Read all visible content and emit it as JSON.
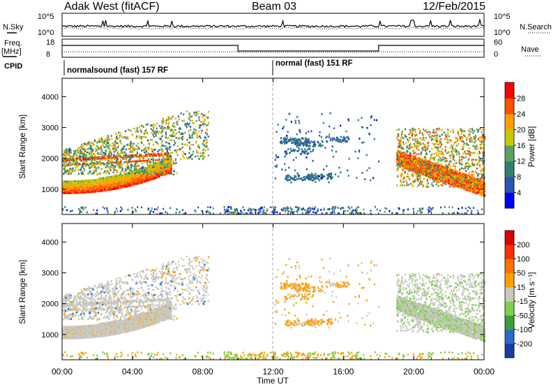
{
  "header": {
    "title": "Adak West (fitACF)",
    "beam": "Beam 03",
    "date": "12/Feb/2015"
  },
  "top_panels": {
    "nsky_label": "N.Sky",
    "nsearch_label": "N.Search",
    "nsky_ticks": [
      "10^5",
      "10^0"
    ],
    "nsearch_ticks": [
      "10^5",
      "10^0"
    ],
    "freq_label_line1": "Freq.",
    "freq_label_line2": "[MHz]",
    "freq_ticks": [
      "18",
      "8"
    ],
    "nave_label": "Nave",
    "nave_ticks": [
      "60",
      "0"
    ],
    "cpid_label": "CPID",
    "cpid_segments": [
      {
        "label": "normalsound (fast) 157 RF",
        "start_h": 0,
        "end_h": 12
      },
      {
        "label": "normal (fast) 151 RF",
        "start_h": 12,
        "end_h": 24
      }
    ]
  },
  "chart_data": [
    {
      "type": "heatmap",
      "name": "Power",
      "ylabel": "Slant Range [km]",
      "ylim": [
        180,
        4600
      ],
      "yticks": [
        "1000",
        "2000",
        "3000",
        "4000"
      ],
      "xlim": [
        "00:00",
        "24:00"
      ],
      "colorbar": {
        "label": "Power [dB]",
        "ticks": [
          "28",
          "24",
          "20",
          "16",
          "12",
          "8",
          "4"
        ],
        "colors": [
          "#0000ff",
          "#2a55b0",
          "#2f7f70",
          "#5aa060",
          "#c8c800",
          "#ffa000",
          "#ff5000",
          "#ff0000"
        ]
      },
      "regions": [
        {
          "desc": "dense band",
          "t": [
            0.0,
            6.0
          ],
          "r_low_start": 900,
          "r_low_end": 1600,
          "thickness": 400,
          "power": 28
        },
        {
          "desc": "upper scatter",
          "t": [
            0.0,
            8.0
          ],
          "r": [
            1500,
            3400
          ],
          "power": 14
        },
        {
          "desc": "midday echoes",
          "t": [
            13.0,
            17.0
          ],
          "r": [
            1200,
            2700
          ],
          "power": 8
        },
        {
          "desc": "evening band",
          "t": [
            19.0,
            24.0
          ],
          "r": [
            700,
            3000
          ],
          "power": 24
        }
      ]
    },
    {
      "type": "heatmap",
      "name": "Velocity",
      "ylabel": "Slant Range [km]",
      "ylim": [
        180,
        4600
      ],
      "yticks": [
        "1000",
        "2000",
        "3000",
        "4000"
      ],
      "xlim": [
        "00:00",
        "24:00"
      ],
      "xticks": [
        "00:00",
        "04:00",
        "08:00",
        "12:00",
        "16:00",
        "20:00",
        "00:00"
      ],
      "xlabel": "Time UT",
      "colorbar": {
        "label": "Velocity [m s⁻¹]",
        "ticks": [
          "200",
          "100",
          "50",
          "15",
          "-15",
          "-50",
          "-100",
          "-200"
        ],
        "colors": [
          "#1c3aa0",
          "#2b6bc8",
          "#3b9e3b",
          "#7ed04a",
          "#c8c8c0",
          "#ffa000",
          "#ff7000",
          "#ff3000",
          "#e00000"
        ]
      }
    }
  ]
}
